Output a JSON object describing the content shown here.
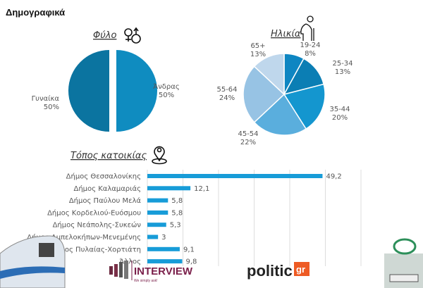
{
  "title": "Δημογραφικά",
  "chart_data": [
    {
      "type": "pie",
      "title": "Φύλο",
      "labels": [
        "Γυναίκα",
        "Άνδρας"
      ],
      "values": [
        50,
        50
      ],
      "value_labels": [
        "50%",
        "50%"
      ],
      "colors": [
        "#0f8cc0",
        "#0b74a0"
      ]
    },
    {
      "type": "pie",
      "title": "Ηλικία",
      "labels": [
        "19-24",
        "25-34",
        "35-44",
        "45-54",
        "55-64",
        "65+"
      ],
      "values": [
        8,
        13,
        20,
        22,
        24,
        13
      ],
      "value_labels": [
        "8%",
        "13%",
        "20%",
        "22%",
        "24%",
        "13%"
      ],
      "colors": [
        "#0e86c2",
        "#0b7eb4",
        "#1496cf",
        "#5aaedd",
        "#97c3e4",
        "#bfd7ec"
      ]
    },
    {
      "type": "bar",
      "orientation": "horizontal",
      "title": "Τόπος κατοικίας",
      "categories": [
        "Δήμος Θεσσαλονίκης",
        "Δήμος Καλαμαριάς",
        "Δήμος Παύλου Μελά",
        "Δήμος Κορδελιού-Ευόσμου",
        "Δήμος Νεάπολης-Συκεών",
        "Δήμος Αμπελοκήπων-Μενεμένης",
        "Δήμος Πυλαίας-Χορτιάτη",
        "Άλλος"
      ],
      "values": [
        49.2,
        12.1,
        5.8,
        5.8,
        5.3,
        3,
        9.1,
        9.8
      ],
      "value_labels": [
        "49,2",
        "12,1",
        "5,8",
        "5,8",
        "5,3",
        "3",
        "9,1",
        "9,8"
      ],
      "xlim": [
        0,
        60
      ],
      "grid": true,
      "color": "#179cd8"
    }
  ],
  "logos": {
    "interview": "INTERVIEW",
    "interview_tagline": "We simply ask!",
    "politic": "politic",
    "politic_suffix": "gr"
  }
}
